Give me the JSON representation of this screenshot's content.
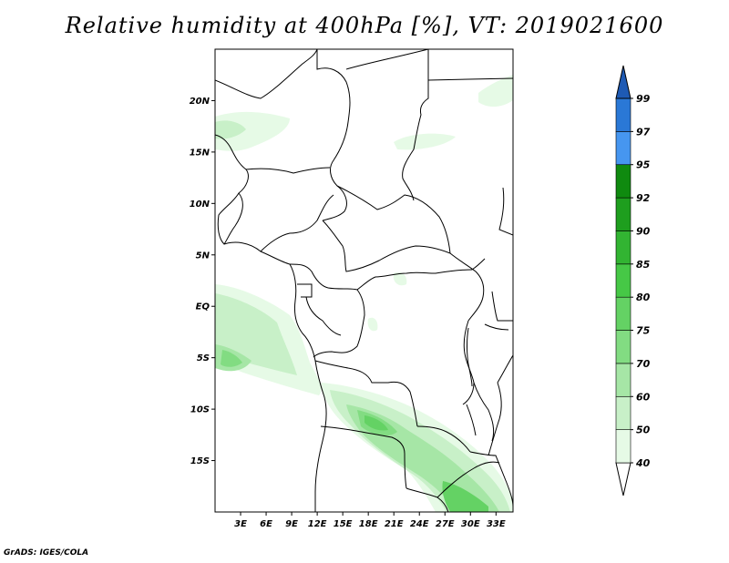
{
  "title": "Relative humidity at 400hPa [%], VT: 2019021600",
  "credit": "GrADS: IGES/COLA",
  "map": {
    "lat_range": [
      -20,
      25
    ],
    "lon_range": [
      0,
      35
    ],
    "lat_ticks": [
      {
        "value": 20,
        "label": "20N"
      },
      {
        "value": 15,
        "label": "15N"
      },
      {
        "value": 10,
        "label": "10N"
      },
      {
        "value": 5,
        "label": "5N"
      },
      {
        "value": 0,
        "label": "EQ"
      },
      {
        "value": -5,
        "label": "5S"
      },
      {
        "value": -10,
        "label": "10S"
      },
      {
        "value": -15,
        "label": "15S"
      }
    ],
    "lon_ticks": [
      {
        "value": 3,
        "label": "3E"
      },
      {
        "value": 6,
        "label": "6E"
      },
      {
        "value": 9,
        "label": "9E"
      },
      {
        "value": 12,
        "label": "12E"
      },
      {
        "value": 15,
        "label": "15E"
      },
      {
        "value": 18,
        "label": "18E"
      },
      {
        "value": 21,
        "label": "21E"
      },
      {
        "value": 24,
        "label": "24E"
      },
      {
        "value": 27,
        "label": "27E"
      },
      {
        "value": 30,
        "label": "30E"
      },
      {
        "value": 33,
        "label": "33E"
      }
    ]
  },
  "colorbar": {
    "levels": [
      "40",
      "50",
      "60",
      "70",
      "75",
      "80",
      "85",
      "90",
      "92",
      "95",
      "97",
      "99"
    ],
    "colors": [
      "#ffffff",
      "#e6fae6",
      "#c8f0c8",
      "#a6e6a6",
      "#82dc82",
      "#64d264",
      "#46c846",
      "#32b432",
      "#1e9e1e",
      "#0f8a0f",
      "#4696f0",
      "#2a78d6",
      "#1e5ab4"
    ]
  }
}
